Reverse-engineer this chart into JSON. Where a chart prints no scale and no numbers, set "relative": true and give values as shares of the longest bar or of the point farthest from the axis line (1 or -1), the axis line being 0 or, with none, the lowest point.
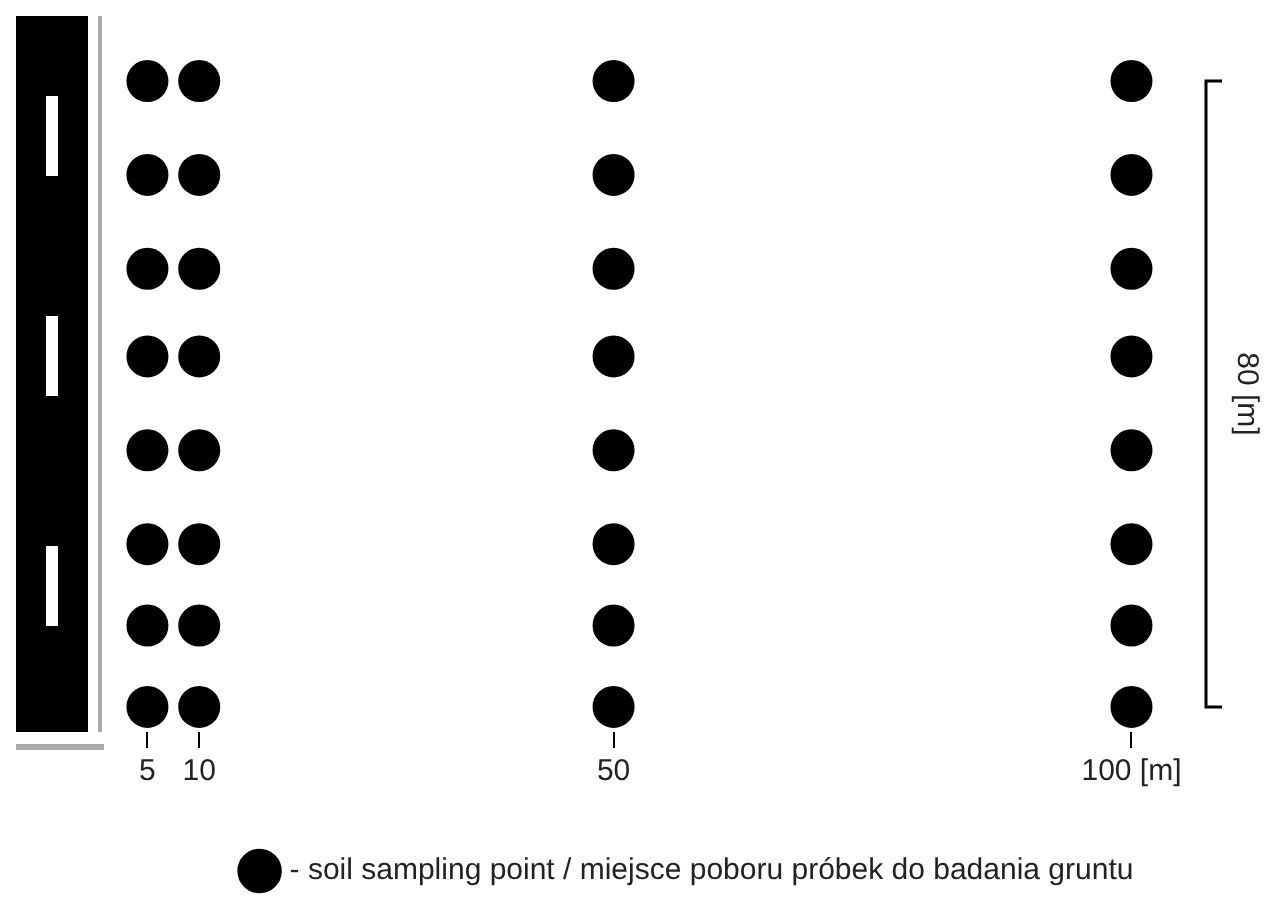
{
  "chart_data": {
    "type": "scatter",
    "ylabel": "80 [m]",
    "relative": true,
    "xlim": [
      1,
      107
    ],
    "xticks": [
      5,
      10,
      50,
      {
        "value": 100,
        "label": "100 [m]"
      }
    ],
    "marker": "circle",
    "grid": false,
    "legend": "bottom",
    "series": [
      {
        "name": "- soil sampling point / miejsce poboru próbek do badania gruntu",
        "color": "#000000",
        "x": [
          5,
          5,
          5,
          5,
          5,
          5,
          5,
          5,
          10,
          10,
          10,
          10,
          10,
          10,
          10,
          10,
          50,
          50,
          50,
          50,
          50,
          50,
          50,
          50,
          100,
          100,
          100,
          100,
          100,
          100,
          100,
          100
        ],
        "values": [
          1,
          0.85,
          0.7,
          0.56,
          0.41,
          0.26,
          0.13,
          0,
          1,
          0.85,
          0.7,
          0.56,
          0.41,
          0.26,
          0.13,
          0,
          1,
          0.85,
          0.7,
          0.56,
          0.41,
          0.26,
          0.13,
          0,
          1,
          0.85,
          0.7,
          0.56,
          0.41,
          0.26,
          0.13,
          0
        ]
      }
    ]
  }
}
